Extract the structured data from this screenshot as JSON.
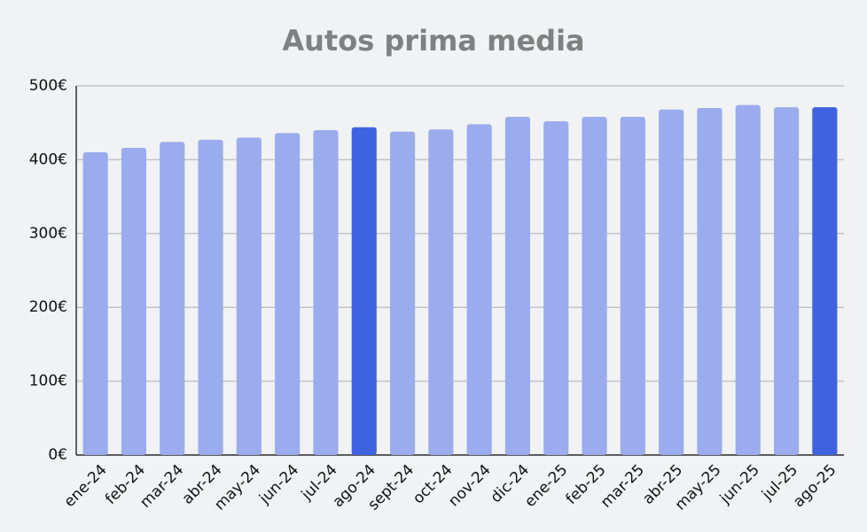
{
  "chart_data": {
    "type": "bar",
    "title": "Autos prima media",
    "categories": [
      "ene-24",
      "feb-24",
      "mar-24",
      "abr-24",
      "may-24",
      "jun-24",
      "jul-24",
      "ago-24",
      "sept-24",
      "oct-24",
      "nov-24",
      "dic-24",
      "ene-25",
      "feb-25",
      "mar-25",
      "abr-25",
      "may-25",
      "jun-25",
      "jul-25",
      "ago-25"
    ],
    "values": [
      410,
      416,
      424,
      427,
      430,
      436,
      440,
      444,
      438,
      441,
      448,
      458,
      452,
      458,
      458,
      468,
      470,
      474,
      471,
      471
    ],
    "colors": [
      "#9aaced",
      "#9aaced",
      "#9aaced",
      "#9aaced",
      "#9aaced",
      "#9aaced",
      "#9aaced",
      "#3f63e0",
      "#9aaced",
      "#9aaced",
      "#9aaced",
      "#9aaced",
      "#9aaced",
      "#9aaced",
      "#9aaced",
      "#9aaced",
      "#9aaced",
      "#9aaced",
      "#9aaced",
      "#3f63e0"
    ],
    "ylim": [
      0,
      500
    ],
    "yticks": [
      {
        "value": 0,
        "label": "0€"
      },
      {
        "value": 100,
        "label": "100€"
      },
      {
        "value": 200,
        "label": "200€"
      },
      {
        "value": 300,
        "label": "300€"
      },
      {
        "value": 400,
        "label": "400€"
      },
      {
        "value": 500,
        "label": "500€"
      }
    ],
    "grid": true
  }
}
